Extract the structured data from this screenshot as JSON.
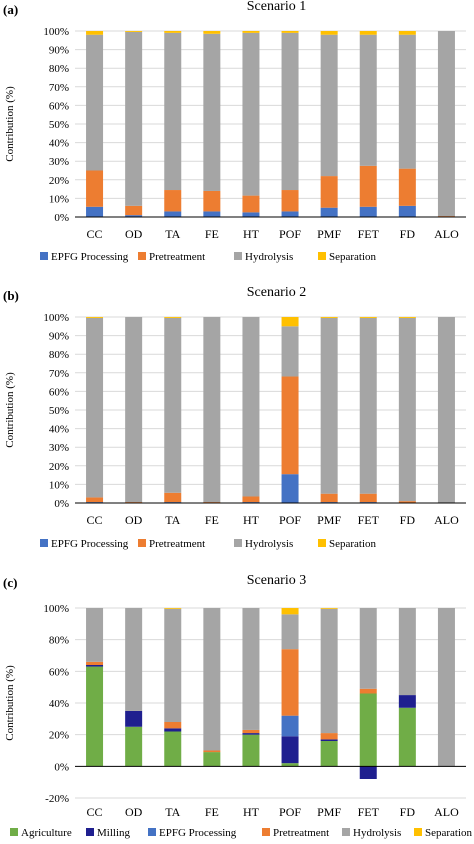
{
  "colors": {
    "agriculture": "#70ad47",
    "milling": "#1f1f8f",
    "epfg": "#4472c4",
    "pretreatment": "#ed7d31",
    "hydrolysis": "#a5a5a5",
    "separation": "#ffc000",
    "gridline": "#d9d9d9",
    "axis": "#000000"
  },
  "chart_data": [
    {
      "type": "bar",
      "stacked": true,
      "panel_label": "(a)",
      "title": "Scenario 1",
      "ylabel": "Contribution (%)",
      "ylim": [
        0,
        100
      ],
      "yticks": [
        "0%",
        "10%",
        "20%",
        "30%",
        "40%",
        "50%",
        "60%",
        "70%",
        "80%",
        "90%",
        "100%"
      ],
      "legend_position": "bottom",
      "grid": true,
      "categories": [
        "CC",
        "OD",
        "TA",
        "FE",
        "HT",
        "POF",
        "PMF",
        "FET",
        "FD",
        "ALO"
      ],
      "series": [
        {
          "name": "EPFG Processing",
          "color_key": "epfg",
          "values": [
            5.5,
            1,
            3,
            3,
            2.5,
            3,
            5,
            5.5,
            6,
            0
          ]
        },
        {
          "name": "Pretreatment",
          "color_key": "pretreatment",
          "values": [
            19.5,
            5,
            11.5,
            11,
            9,
            11.5,
            17,
            22,
            20,
            0.5
          ]
        },
        {
          "name": "Hydrolysis",
          "color_key": "hydrolysis",
          "values": [
            73,
            93.5,
            84.5,
            84.5,
            87.5,
            84.5,
            76,
            70.5,
            72,
            99.5
          ]
        },
        {
          "name": "Separation",
          "color_key": "separation",
          "values": [
            2,
            0.5,
            1,
            1.5,
            1,
            1,
            2,
            2,
            2,
            0
          ]
        }
      ]
    },
    {
      "type": "bar",
      "stacked": true,
      "panel_label": "(b)",
      "title": "Scenario 2",
      "ylabel": "Contribution (%)",
      "ylim": [
        0,
        100
      ],
      "yticks": [
        "0%",
        "10%",
        "20%",
        "30%",
        "40%",
        "50%",
        "60%",
        "70%",
        "80%",
        "90%",
        "100%"
      ],
      "legend_position": "bottom",
      "grid": true,
      "categories": [
        "CC",
        "OD",
        "TA",
        "FE",
        "HT",
        "POF",
        "PMF",
        "FET",
        "FD",
        "ALO"
      ],
      "series": [
        {
          "name": "EPFG Processing",
          "color_key": "epfg",
          "values": [
            0.5,
            0,
            0.5,
            0,
            0.5,
            15.5,
            0.5,
            0.5,
            0,
            0
          ]
        },
        {
          "name": "Pretreatment",
          "color_key": "pretreatment",
          "values": [
            2.5,
            0.5,
            5,
            0.5,
            3,
            52.5,
            4.5,
            4.5,
            1,
            0
          ]
        },
        {
          "name": "Hydrolysis",
          "color_key": "hydrolysis",
          "values": [
            96.5,
            99.5,
            94,
            99.5,
            96.5,
            27,
            94.5,
            94.5,
            98.5,
            100
          ]
        },
        {
          "name": "Separation",
          "color_key": "separation",
          "values": [
            0.5,
            0,
            0.5,
            0,
            0,
            5,
            0.5,
            0.5,
            0.5,
            0
          ]
        }
      ]
    },
    {
      "type": "bar",
      "stacked": true,
      "panel_label": "(c)",
      "title": "Scenario 3",
      "ylabel": "Contribution (%)",
      "ylim": [
        -20,
        100
      ],
      "yticks": [
        "-20%",
        "0%",
        "20%",
        "40%",
        "60%",
        "80%",
        "100%"
      ],
      "legend_position": "bottom",
      "grid": true,
      "categories": [
        "CC",
        "OD",
        "TA",
        "FE",
        "HT",
        "POF",
        "PMF",
        "FET",
        "FD",
        "ALO"
      ],
      "series": [
        {
          "name": "Agriculture",
          "color_key": "agriculture",
          "values": [
            63,
            25,
            22,
            9,
            20,
            2,
            16,
            46,
            37,
            0
          ]
        },
        {
          "name": "Milling",
          "color_key": "milling",
          "values": [
            1,
            10,
            2,
            0,
            1,
            17,
            1,
            -8,
            8,
            0
          ]
        },
        {
          "name": "EPFG Processing",
          "color_key": "epfg",
          "values": [
            0,
            0,
            0,
            0,
            0,
            13,
            0,
            0,
            0,
            0
          ]
        },
        {
          "name": "Pretreatment",
          "color_key": "pretreatment",
          "values": [
            2,
            0,
            4,
            1,
            2,
            42,
            4,
            3,
            0,
            0
          ]
        },
        {
          "name": "Hydrolysis",
          "color_key": "hydrolysis",
          "values": [
            34,
            65,
            71.5,
            90,
            77,
            22,
            78.5,
            51,
            55,
            100
          ]
        },
        {
          "name": "Separation",
          "color_key": "separation",
          "values": [
            0,
            0,
            0.5,
            0,
            0,
            4,
            0.5,
            0,
            0,
            0
          ]
        }
      ]
    }
  ]
}
